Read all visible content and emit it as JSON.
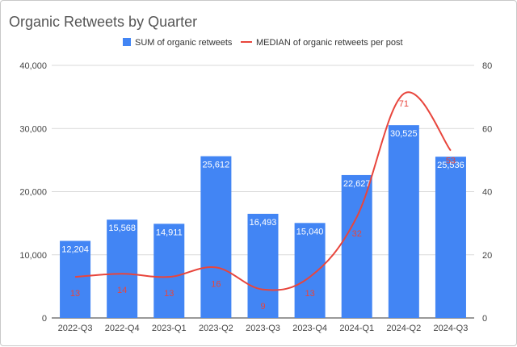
{
  "chart_data": {
    "type": "bar",
    "title": "Organic Retweets by Quarter",
    "categories": [
      "2022-Q3",
      "2022-Q4",
      "2023-Q1",
      "2023-Q2",
      "2023-Q3",
      "2023-Q4",
      "2024-Q1",
      "2024-Q2",
      "2024-Q3"
    ],
    "series": [
      {
        "name": "SUM of organic retweets",
        "type": "bar",
        "axis": "left",
        "color": "#4285f4",
        "values": [
          12204,
          15568,
          14911,
          25612,
          16493,
          15040,
          22627,
          30525,
          25536
        ],
        "labels": [
          "12,204",
          "15,568",
          "14,911",
          "25,612",
          "16,493",
          "15,040",
          "22,627",
          "30,525",
          "25,536"
        ]
      },
      {
        "name": "MEDIAN of organic retweets per post",
        "type": "line",
        "axis": "right",
        "color": "#e8453c",
        "values": [
          13,
          14,
          13,
          16,
          9,
          13,
          32,
          71,
          53
        ],
        "labels": [
          "13",
          "14",
          "13",
          "16",
          "9",
          "13",
          "32",
          "71",
          "53"
        ]
      }
    ],
    "y_left": {
      "lim": [
        0,
        40000
      ],
      "ticks": [
        "0",
        "10,000",
        "20,000",
        "30,000",
        "40,000"
      ]
    },
    "y_right": {
      "lim": [
        0,
        80
      ],
      "ticks": [
        "0",
        "20",
        "40",
        "60",
        "80"
      ]
    },
    "legend_position": "top-center",
    "grid": true
  }
}
